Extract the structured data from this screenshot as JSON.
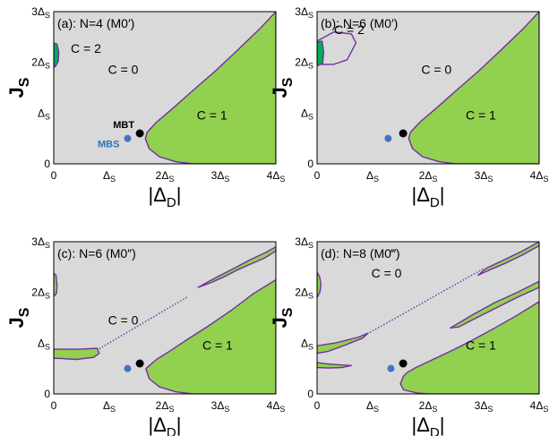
{
  "figure": {
    "colors": {
      "background": "#d9d9d9",
      "region_c1": "#92d050",
      "region_c2": "#00b050",
      "boundary": "#7030a0",
      "mbt_point": "#000000",
      "mbs_point": "#4472c4",
      "mbs_label": "#2e75b6"
    },
    "axis_labels": {
      "ylabel_main": "J",
      "ylabel_sub": "S",
      "xlabel_main": "|Δ",
      "xlabel_sub": "D",
      "xlabel_end": "|"
    },
    "tick_labels": {
      "x": [
        {
          "main": "0",
          "sub": ""
        },
        {
          "main": "Δ",
          "sub": "S"
        },
        {
          "main": "2Δ",
          "sub": "S"
        },
        {
          "main": "3Δ",
          "sub": "S"
        },
        {
          "main": "4Δ",
          "sub": "S"
        }
      ],
      "y": [
        {
          "main": "0",
          "sub": ""
        },
        {
          "main": "Δ",
          "sub": "S"
        },
        {
          "main": "2Δ",
          "sub": "S"
        },
        {
          "main": "3Δ",
          "sub": "S"
        }
      ]
    }
  },
  "chart_data": [
    {
      "type": "heatmap",
      "panel": "a",
      "title": "(a): N=4 (M0′)",
      "xlabel": "|ΔD|",
      "ylabel": "JS",
      "xlim": [
        0,
        4
      ],
      "ylim": [
        0,
        3
      ],
      "phase_labels": [
        {
          "text": "C = 2",
          "x": 0.58,
          "y": 2.28
        },
        {
          "text": "C = 0",
          "x": 1.25,
          "y": 1.86
        },
        {
          "text": "C = 1",
          "x": 2.85,
          "y": 0.96
        }
      ],
      "points": [
        {
          "name": "MBT",
          "x": 1.55,
          "y": 0.6
        },
        {
          "name": "MBS",
          "x": 1.33,
          "y": 0.5
        }
      ],
      "regions": [
        {
          "chern": 1,
          "boundary": [
            [
              4,
              3
            ],
            [
              3.7,
              2.65
            ],
            [
              3.3,
              2.23
            ],
            [
              2.9,
              1.82
            ],
            [
              2.5,
              1.44
            ],
            [
              2.15,
              1.1
            ],
            [
              1.85,
              0.82
            ],
            [
              1.68,
              0.62
            ],
            [
              1.65,
              0.5
            ],
            [
              1.72,
              0.3
            ],
            [
              1.9,
              0.14
            ],
            [
              2.2,
              0.04
            ],
            [
              2.5,
              0
            ],
            [
              4,
              0
            ]
          ]
        },
        {
          "chern": 2,
          "boundary": [
            [
              0,
              2.38
            ],
            [
              0.06,
              2.36
            ],
            [
              0.09,
              2.2
            ],
            [
              0.08,
              2.02
            ],
            [
              0.03,
              1.92
            ],
            [
              0,
              1.9
            ]
          ]
        }
      ],
      "lines": []
    },
    {
      "type": "heatmap",
      "panel": "b",
      "title": "(b): N=6 (M0′)",
      "xlabel": "|ΔD|",
      "ylabel": "JS",
      "xlim": [
        0,
        4
      ],
      "ylim": [
        0,
        3
      ],
      "phase_labels": [
        {
          "text": "C = 2",
          "x": 0.58,
          "y": 2.65
        },
        {
          "text": "C = 0",
          "x": 2.15,
          "y": 1.86
        },
        {
          "text": "C = 1",
          "x": 2.95,
          "y": 0.96
        }
      ],
      "points": [
        {
          "name": "",
          "x": 1.55,
          "y": 0.6
        },
        {
          "name": "",
          "x": 1.28,
          "y": 0.5
        }
      ],
      "regions": [
        {
          "chern": 1,
          "boundary": [
            [
              4,
              3
            ],
            [
              3.7,
              2.65
            ],
            [
              3.3,
              2.23
            ],
            [
              2.9,
              1.82
            ],
            [
              2.5,
              1.44
            ],
            [
              2.15,
              1.1
            ],
            [
              1.85,
              0.82
            ],
            [
              1.68,
              0.62
            ],
            [
              1.65,
              0.5
            ],
            [
              1.72,
              0.3
            ],
            [
              1.9,
              0.14
            ],
            [
              2.2,
              0.04
            ],
            [
              2.5,
              0
            ],
            [
              4,
              0
            ]
          ]
        },
        {
          "chern": 0,
          "boundary": [
            [
              0,
              2.42
            ],
            [
              0.3,
              2.6
            ],
            [
              0.62,
              2.56
            ],
            [
              0.7,
              2.38
            ],
            [
              0.54,
              2.05
            ],
            [
              0.3,
              1.96
            ],
            [
              0.08,
              1.96
            ],
            [
              0,
              2
            ]
          ]
        },
        {
          "chern": 2,
          "boundary": [
            [
              0,
              2.4
            ],
            [
              0.09,
              2.42
            ],
            [
              0.12,
              2.2
            ],
            [
              0.1,
              1.98
            ],
            [
              0.02,
              1.94
            ],
            [
              0,
              1.95
            ]
          ]
        }
      ],
      "lines": []
    },
    {
      "type": "heatmap",
      "panel": "c",
      "title": "(c): N=6 (M0″)",
      "xlabel": "|ΔD|",
      "ylabel": "JS",
      "xlim": [
        0,
        4
      ],
      "ylim": [
        0,
        3
      ],
      "phase_labels": [
        {
          "text": "C = 0",
          "x": 1.25,
          "y": 1.46
        },
        {
          "text": "C = 1",
          "x": 2.95,
          "y": 0.96
        }
      ],
      "points": [
        {
          "name": "",
          "x": 1.55,
          "y": 0.6
        },
        {
          "name": "",
          "x": 1.33,
          "y": 0.5
        }
      ],
      "regions": [
        {
          "chern": 1,
          "boundary": [
            [
              4,
              2.25
            ],
            [
              3.6,
              1.98
            ],
            [
              3.2,
              1.65
            ],
            [
              2.8,
              1.35
            ],
            [
              2.4,
              1.07
            ],
            [
              2.1,
              0.85
            ],
            [
              1.85,
              0.68
            ],
            [
              1.66,
              0.5
            ],
            [
              1.72,
              0.3
            ],
            [
              1.9,
              0.14
            ],
            [
              2.2,
              0.04
            ],
            [
              2.5,
              0
            ],
            [
              4,
              0
            ]
          ]
        },
        {
          "chern": 1,
          "boundary": [
            [
              0,
              0.88
            ],
            [
              0.45,
              0.88
            ],
            [
              0.78,
              0.9
            ],
            [
              0.82,
              0.8
            ],
            [
              0.72,
              0.72
            ],
            [
              0.4,
              0.68
            ],
            [
              0.1,
              0.7
            ],
            [
              0,
              0.7
            ]
          ]
        },
        {
          "chern": 1,
          "boundary": [
            [
              3.55,
              2.65
            ],
            [
              3.8,
              2.78
            ],
            [
              4,
              2.9
            ],
            [
              4,
              2.82
            ],
            [
              3.8,
              2.68
            ],
            [
              3.55,
              2.56
            ],
            [
              3.3,
              2.44
            ],
            [
              3.05,
              2.3
            ],
            [
              2.8,
              2.18
            ],
            [
              2.6,
              2.1
            ],
            [
              2.88,
              2.27
            ],
            [
              3.2,
              2.45
            ]
          ]
        },
        {
          "chern": 1,
          "boundary": [
            [
              0,
              2.38
            ],
            [
              0.04,
              2.34
            ],
            [
              0.06,
              2.15
            ],
            [
              0.05,
              1.98
            ],
            [
              0,
              1.92
            ]
          ]
        }
      ],
      "lines": [
        {
          "style": "dotted",
          "points": [
            [
              0.82,
              0.89
            ],
            [
              2.42,
              1.92
            ]
          ]
        }
      ]
    },
    {
      "type": "heatmap",
      "panel": "d",
      "title": "(d): N=8 (M0‴)",
      "xlabel": "|ΔD|",
      "ylabel": "JS",
      "xlim": [
        0,
        4
      ],
      "ylim": [
        0,
        3
      ],
      "phase_labels": [
        {
          "text": "C = 0",
          "x": 1.25,
          "y": 2.38
        },
        {
          "text": "C = 1",
          "x": 2.95,
          "y": 0.96
        }
      ],
      "points": [
        {
          "name": "",
          "x": 1.55,
          "y": 0.6
        },
        {
          "name": "",
          "x": 1.33,
          "y": 0.5
        }
      ],
      "regions": [
        {
          "chern": 1,
          "boundary": [
            [
              4,
              1.82
            ],
            [
              3.6,
              1.55
            ],
            [
              3.2,
              1.3
            ],
            [
              2.8,
              1.06
            ],
            [
              2.4,
              0.84
            ],
            [
              2.05,
              0.66
            ],
            [
              1.78,
              0.52
            ],
            [
              1.62,
              0.42
            ],
            [
              1.55,
              0.34
            ],
            [
              1.5,
              0.2
            ],
            [
              1.56,
              0.08
            ],
            [
              1.8,
              0.02
            ],
            [
              2,
              0
            ],
            [
              4,
              0
            ]
          ]
        },
        {
          "chern": 1,
          "boundary": [
            [
              0,
              0.95
            ],
            [
              0.35,
              1.01
            ],
            [
              0.75,
              1.12
            ],
            [
              0.92,
              1.2
            ],
            [
              0.82,
              1.1
            ],
            [
              0.5,
              0.96
            ],
            [
              0.2,
              0.84
            ],
            [
              0,
              0.8
            ]
          ]
        },
        {
          "chern": 1,
          "boundary": [
            [
              0,
              0.62
            ],
            [
              0.2,
              0.59
            ],
            [
              0.45,
              0.57
            ],
            [
              0.62,
              0.56
            ],
            [
              0.45,
              0.52
            ],
            [
              0.2,
              0.51
            ],
            [
              0,
              0.52
            ]
          ]
        },
        {
          "chern": 1,
          "boundary": [
            [
              2.4,
              1.3
            ],
            [
              2.8,
              1.56
            ],
            [
              3.2,
              1.8
            ],
            [
              3.6,
              2.0
            ],
            [
              4,
              2.22
            ],
            [
              4,
              2.1
            ],
            [
              3.6,
              1.9
            ],
            [
              3.2,
              1.68
            ],
            [
              2.8,
              1.46
            ],
            [
              2.55,
              1.32
            ]
          ]
        },
        {
          "chern": 1,
          "boundary": [
            [
              3.05,
              2.48
            ],
            [
              3.4,
              2.66
            ],
            [
              3.7,
              2.82
            ],
            [
              4,
              3
            ],
            [
              4,
              2.92
            ],
            [
              3.7,
              2.74
            ],
            [
              3.4,
              2.58
            ],
            [
              3.1,
              2.44
            ],
            [
              2.9,
              2.34
            ]
          ]
        },
        {
          "chern": 1,
          "boundary": [
            [
              0,
              2.4
            ],
            [
              0.05,
              2.3
            ],
            [
              0.07,
              2.15
            ],
            [
              0.05,
              2.0
            ],
            [
              0,
              1.9
            ]
          ]
        }
      ],
      "lines": [
        {
          "style": "dotted",
          "points": [
            [
              0.95,
              1.21
            ],
            [
              3.0,
              2.47
            ]
          ]
        }
      ]
    }
  ]
}
